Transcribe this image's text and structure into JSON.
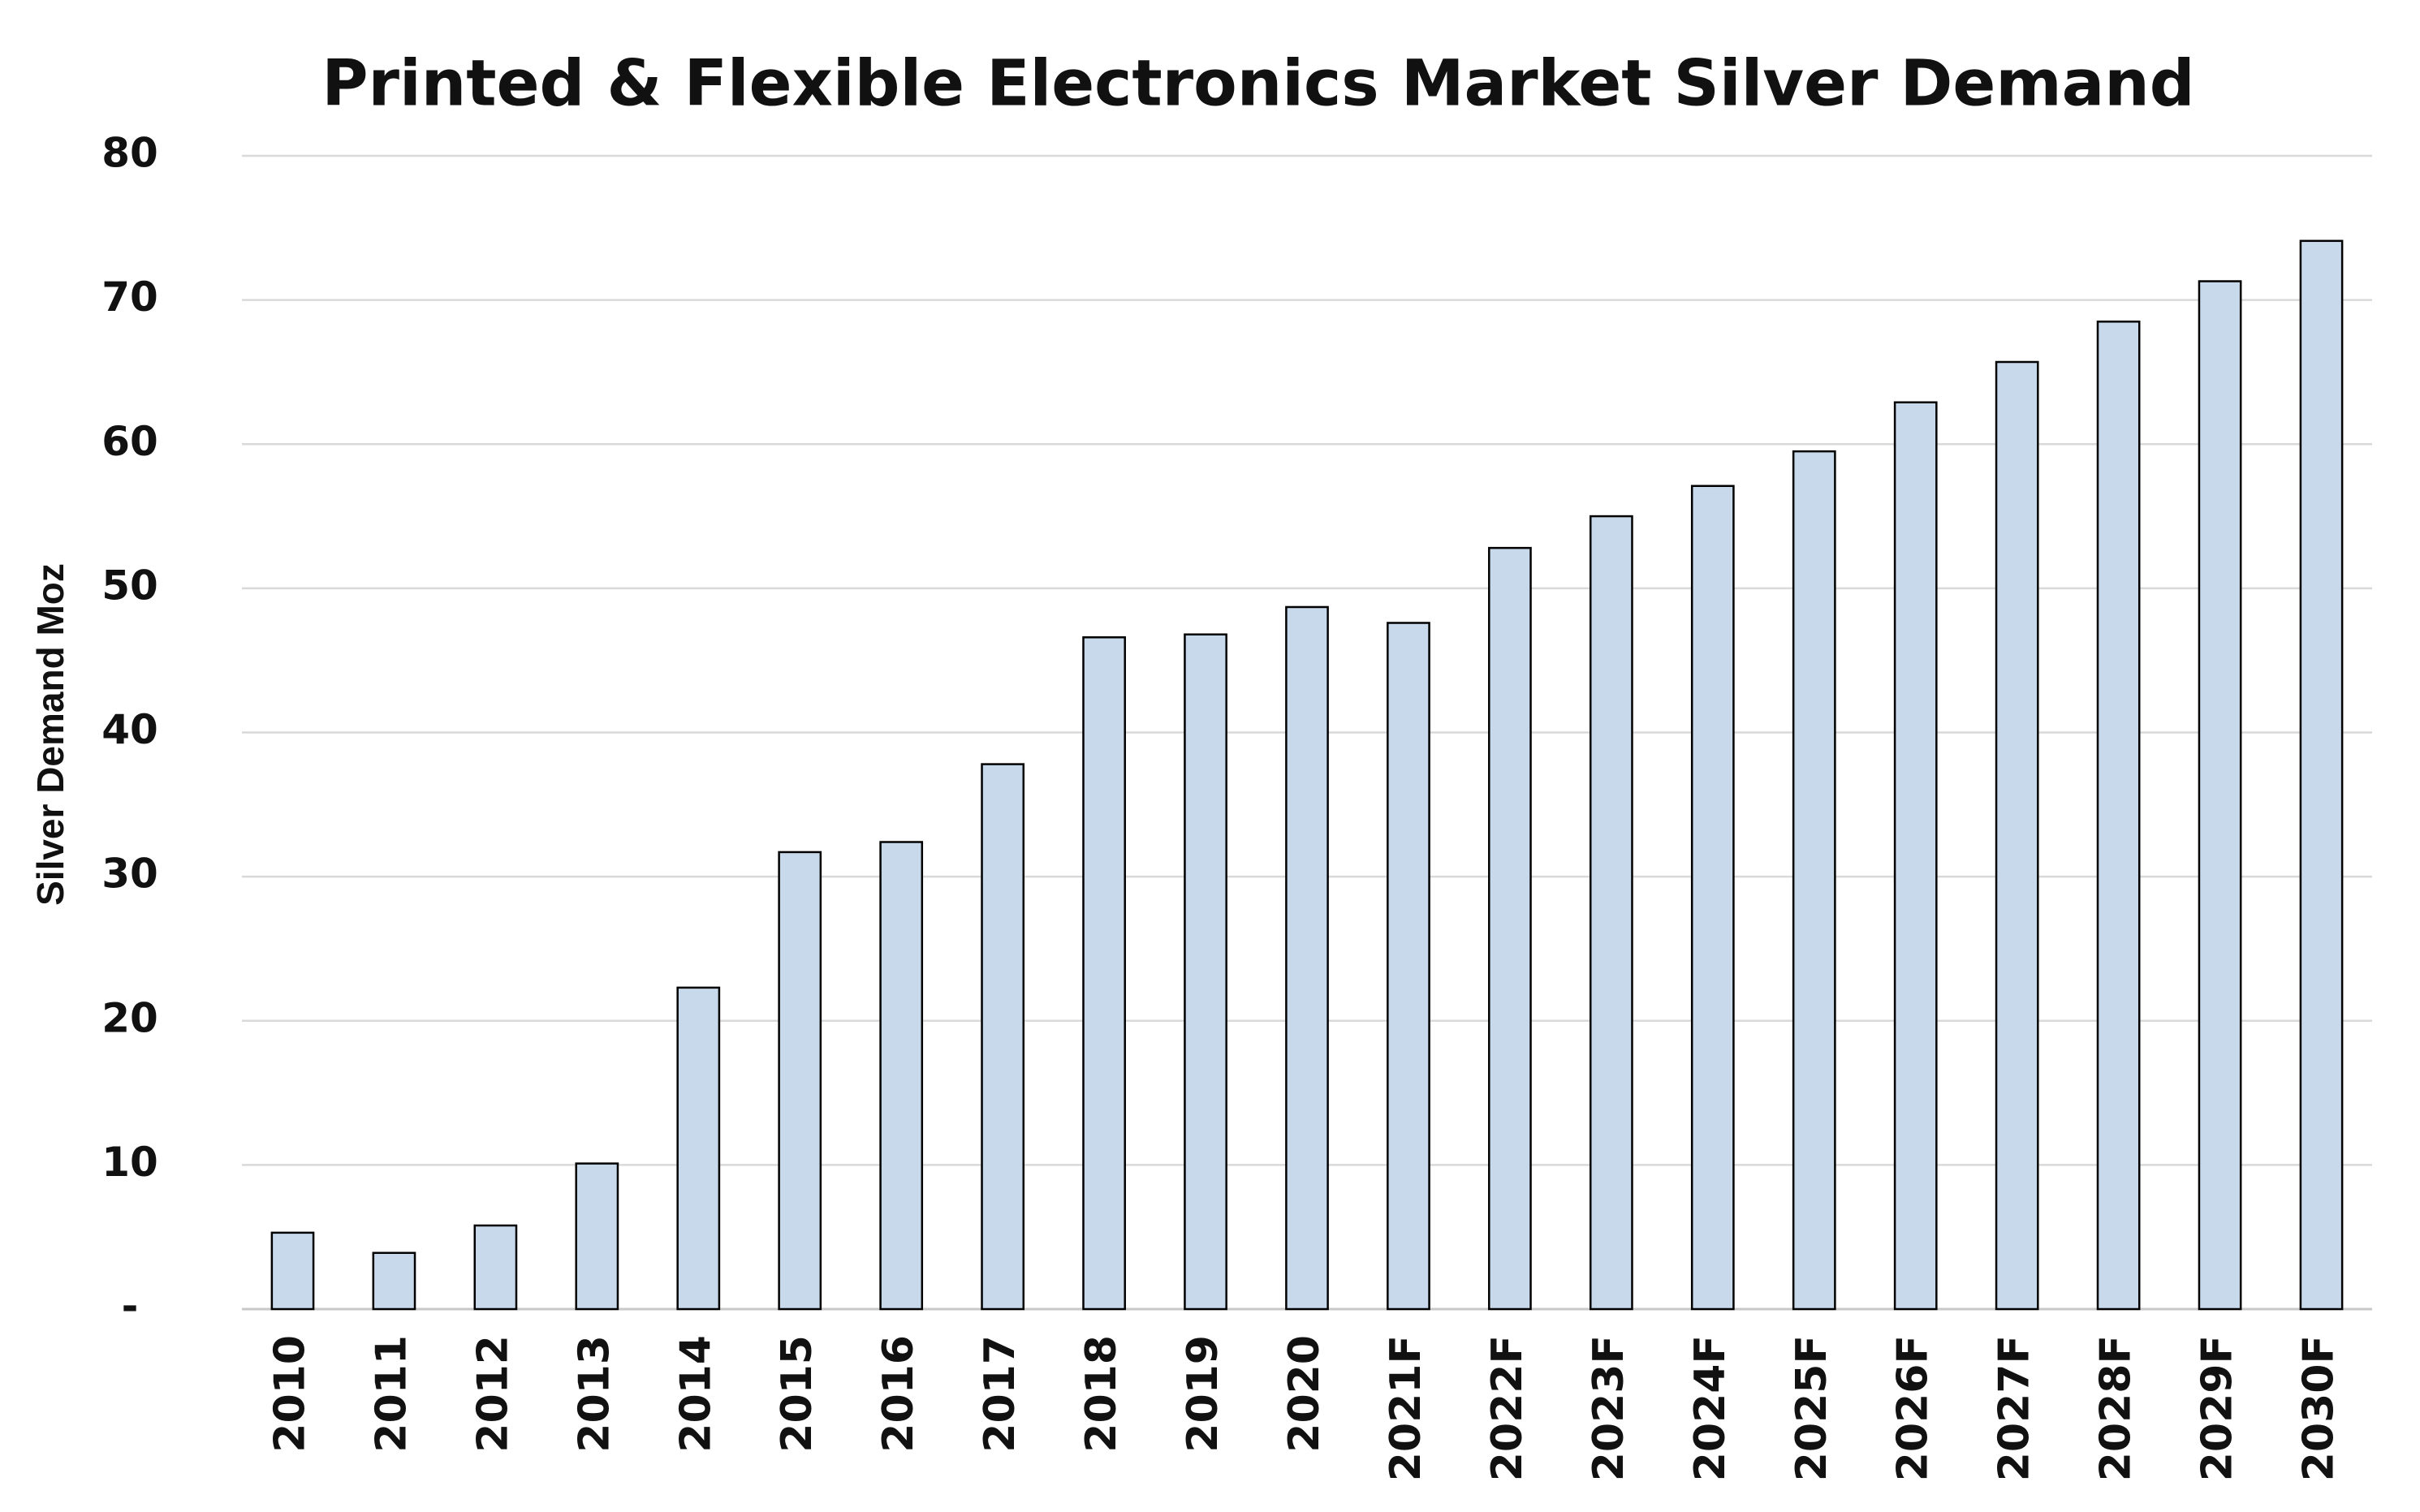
{
  "chart_data": {
    "type": "bar",
    "title": "Printed & Flexible Electronics Market  Silver Demand",
    "y_label": "Silver Demand Moz",
    "categories": [
      "2010",
      "2011",
      "2012",
      "2013",
      "2014",
      "2015",
      "2016",
      "2017",
      "2018",
      "2019",
      "2020",
      "2021F",
      "2022F",
      "2023F",
      "2024F",
      "2025F",
      "2026F",
      "2027F",
      "2028F",
      "2029F",
      "2030F"
    ],
    "values": [
      5.3,
      3.9,
      5.8,
      10.1,
      22.3,
      31.7,
      32.4,
      37.8,
      46.6,
      46.8,
      48.7,
      47.6,
      52.8,
      55.0,
      57.1,
      59.5,
      62.9,
      65.7,
      68.5,
      71.3,
      74.1
    ],
    "color": "#c9d9ec",
    "edge_color": "#000000",
    "ylim": [
      0,
      80
    ],
    "yticks": [
      {
        "value": 0,
        "label": "-"
      },
      10,
      20,
      30,
      40,
      50,
      60,
      70,
      80
    ],
    "grid": true
  }
}
